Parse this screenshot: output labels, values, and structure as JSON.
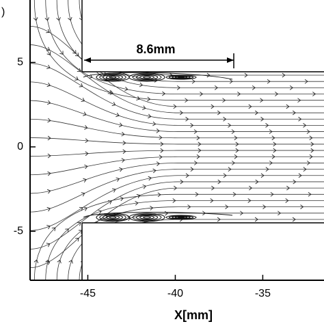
{
  "chart_data": {
    "type": "streamline",
    "panel_label": ")",
    "xlabel": "X[mm]",
    "annotation": "8.6mm",
    "xlim": [
      -48.3,
      -31.5
    ],
    "ylim": [
      -7.9,
      8.7
    ],
    "xticks": [
      -45,
      -40,
      -35
    ],
    "yticks": [
      5,
      0,
      -5
    ]
  }
}
